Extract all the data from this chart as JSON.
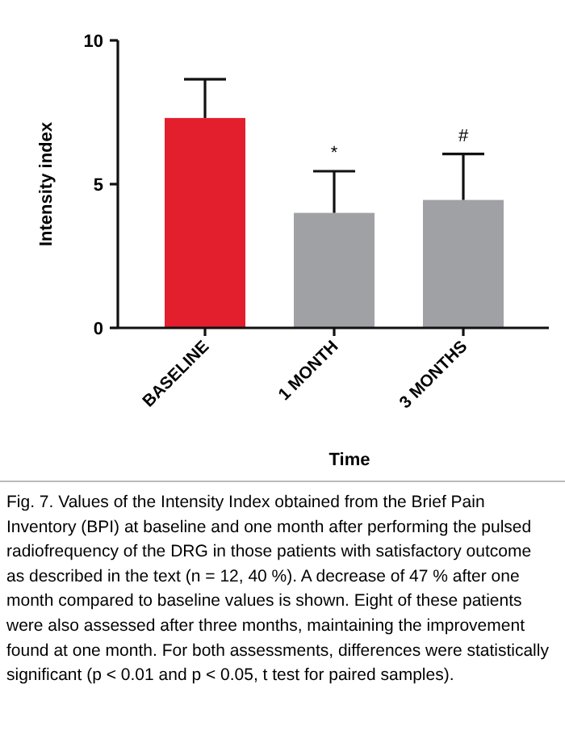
{
  "chart_data": {
    "type": "bar",
    "xlabel": "Time",
    "ylabel": "Intensity index",
    "categories": [
      "BASELINE",
      "1 MONTH",
      "3 MONTHS"
    ],
    "values": [
      7.3,
      4.0,
      4.45
    ],
    "colors": [
      "#e31e2d",
      "#a0a1a4",
      "#a0a1a4"
    ],
    "errors": [
      [
        7.3,
        8.65
      ],
      [
        4.0,
        5.45
      ],
      [
        4.45,
        6.05
      ]
    ],
    "ylim": [
      0,
      10
    ],
    "yticks": [
      0,
      5,
      10
    ],
    "grid": false,
    "annotations": [
      {
        "text": "*",
        "x": "1 MONTH",
        "y": 5.45
      },
      {
        "text": "#",
        "x": "3 MONTHS",
        "y": 6.05
      },
      "Fig. 7. Values of the Intensity Index obtained from the Brief Pain Inventory (BPI) at baseline and one month after performing the pulsed radiofrequency of the DRG in those patients with satisfactory outcome as described in the text (n = 12, 40 %). A decrease of 47 % after one month compared to baseline values is shown. Eight of these patients were also assessed after three months, maintaining the improvement found at one month. For both assessments, differences were statistically significant (p < 0.01 and p < 0.05, t test for paired samples)."
    ]
  }
}
